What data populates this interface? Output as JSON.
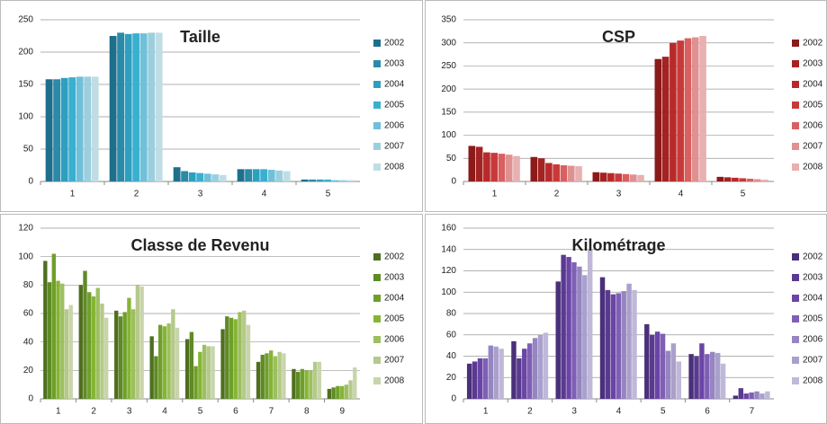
{
  "chart_data": [
    {
      "type": "bar",
      "title": "Taille",
      "categories": [
        "1",
        "2",
        "3",
        "4",
        "5"
      ],
      "ylim": [
        0,
        250
      ],
      "yticks": [
        0,
        50,
        100,
        150,
        200,
        250
      ],
      "grid": true,
      "legend": "right",
      "series": [
        {
          "name": "2002",
          "color": "#1f6f8b",
          "values": [
            158,
            225,
            22,
            19,
            3
          ]
        },
        {
          "name": "2003",
          "color": "#2a8aa8",
          "values": [
            158,
            230,
            16,
            19,
            3
          ]
        },
        {
          "name": "2004",
          "color": "#2f9fc0",
          "values": [
            160,
            228,
            14,
            19,
            3
          ]
        },
        {
          "name": "2005",
          "color": "#3ab0cf",
          "values": [
            161,
            229,
            13,
            19,
            3
          ]
        },
        {
          "name": "2006",
          "color": "#6fc0d8",
          "values": [
            162,
            229,
            12,
            18,
            2
          ]
        },
        {
          "name": "2007",
          "color": "#9ccfdd",
          "values": [
            162,
            230,
            11,
            17,
            2
          ]
        },
        {
          "name": "2008",
          "color": "#c0dde6",
          "values": [
            162,
            230,
            10,
            16,
            2
          ]
        }
      ]
    },
    {
      "type": "bar",
      "title": "CSP",
      "categories": [
        "1",
        "2",
        "3",
        "4",
        "5"
      ],
      "ylim": [
        0,
        350
      ],
      "yticks": [
        0,
        50,
        100,
        150,
        200,
        250,
        300,
        350
      ],
      "grid": true,
      "legend": "right",
      "series": [
        {
          "name": "2002",
          "color": "#8b1a1a",
          "values": [
            77,
            53,
            20,
            265,
            10
          ]
        },
        {
          "name": "2003",
          "color": "#a52222",
          "values": [
            75,
            50,
            19,
            270,
            9
          ]
        },
        {
          "name": "2004",
          "color": "#b82a2a",
          "values": [
            63,
            40,
            18,
            300,
            8
          ]
        },
        {
          "name": "2005",
          "color": "#c83a3a",
          "values": [
            62,
            37,
            17,
            305,
            7
          ]
        },
        {
          "name": "2006",
          "color": "#d86060",
          "values": [
            60,
            35,
            16,
            310,
            6
          ]
        },
        {
          "name": "2007",
          "color": "#e09090",
          "values": [
            58,
            34,
            15,
            312,
            5
          ]
        },
        {
          "name": "2008",
          "color": "#e8b0b0",
          "values": [
            55,
            33,
            14,
            315,
            4
          ]
        }
      ]
    },
    {
      "type": "bar",
      "title": "Classe de Revenu",
      "categories": [
        "1",
        "2",
        "3",
        "4",
        "5",
        "6",
        "7",
        "8",
        "9"
      ],
      "ylim": [
        0,
        120
      ],
      "yticks": [
        0,
        20,
        40,
        60,
        80,
        100,
        120
      ],
      "grid": true,
      "legend": "right",
      "series": [
        {
          "name": "2002",
          "color": "#4f6f1f",
          "values": [
            97,
            80,
            62,
            44,
            42,
            49,
            26,
            21,
            7
          ]
        },
        {
          "name": "2003",
          "color": "#5f8a25",
          "values": [
            82,
            90,
            58,
            30,
            47,
            58,
            31,
            19,
            8
          ]
        },
        {
          "name": "2004",
          "color": "#6f9f2a",
          "values": [
            102,
            75,
            61,
            52,
            23,
            57,
            32,
            21,
            9
          ]
        },
        {
          "name": "2005",
          "color": "#85b535",
          "values": [
            83,
            72,
            71,
            51,
            33,
            56,
            34,
            20,
            9
          ]
        },
        {
          "name": "2006",
          "color": "#9dbf60",
          "values": [
            81,
            78,
            63,
            53,
            38,
            61,
            30,
            20,
            10
          ]
        },
        {
          "name": "2007",
          "color": "#b5c98a",
          "values": [
            63,
            67,
            80,
            63,
            37,
            62,
            33,
            26,
            13
          ]
        },
        {
          "name": "2008",
          "color": "#c8d4aa",
          "values": [
            66,
            57,
            79,
            50,
            37,
            52,
            32,
            26,
            22
          ]
        }
      ]
    },
    {
      "type": "bar",
      "title": "Kilométrage",
      "categories": [
        "1",
        "2",
        "3",
        "4",
        "5",
        "6",
        "7"
      ],
      "ylim": [
        0,
        160
      ],
      "yticks": [
        0,
        20,
        40,
        60,
        80,
        100,
        120,
        140,
        160
      ],
      "grid": true,
      "legend": "right",
      "series": [
        {
          "name": "2002",
          "color": "#4a2f7a",
          "values": [
            33,
            54,
            110,
            114,
            70,
            42,
            3
          ]
        },
        {
          "name": "2003",
          "color": "#5a3a90",
          "values": [
            35,
            38,
            135,
            102,
            60,
            40,
            10
          ]
        },
        {
          "name": "2004",
          "color": "#6a45a5",
          "values": [
            38,
            47,
            133,
            98,
            63,
            52,
            5
          ]
        },
        {
          "name": "2005",
          "color": "#7f5fb5",
          "values": [
            38,
            52,
            128,
            99,
            61,
            42,
            6
          ]
        },
        {
          "name": "2006",
          "color": "#9585c0",
          "values": [
            50,
            57,
            124,
            101,
            45,
            44,
            7
          ]
        },
        {
          "name": "2007",
          "color": "#aaa0cc",
          "values": [
            49,
            60,
            116,
            108,
            52,
            43,
            5
          ]
        },
        {
          "name": "2008",
          "color": "#c0b8d8",
          "values": [
            47,
            62,
            140,
            102,
            35,
            33,
            7
          ]
        }
      ]
    }
  ]
}
